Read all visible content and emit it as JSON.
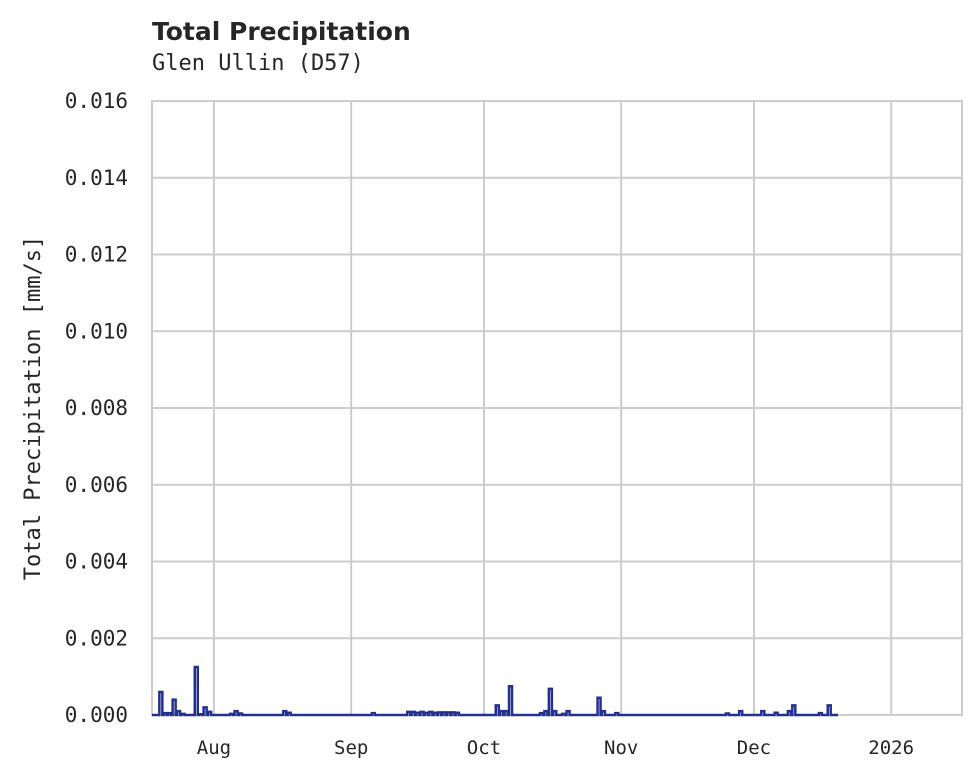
{
  "header": {
    "title": "Total Precipitation",
    "subtitle": "Glen Ullin (D57)"
  },
  "colors": {
    "series": "#233090",
    "grid": "#cccccc",
    "text": "#262626",
    "background": "#ffffff"
  },
  "chart_data": {
    "type": "line",
    "title": "Total Precipitation",
    "subtitle": "Glen Ullin (D57)",
    "xlabel": "",
    "ylabel": "Total Precipitation [mm/s]",
    "ylim": [
      0,
      0.016
    ],
    "xlim": [
      "2025-07-18",
      "2026-01-17"
    ],
    "grid": true,
    "legend": null,
    "y_ticks": [
      "0.000",
      "0.002",
      "0.004",
      "0.006",
      "0.008",
      "0.010",
      "0.012",
      "0.014",
      "0.016"
    ],
    "x_ticks": [
      "Aug",
      "Sep",
      "Oct",
      "Nov",
      "Dec",
      "2026"
    ],
    "series": [
      {
        "name": "Total Precipitation",
        "x": [
          "2025-07-20",
          "2025-07-21",
          "2025-07-22",
          "2025-07-23",
          "2025-07-24",
          "2025-07-25",
          "2025-07-28",
          "2025-07-29",
          "2025-07-30",
          "2025-07-31",
          "2025-08-05",
          "2025-08-06",
          "2025-08-07",
          "2025-08-17",
          "2025-08-18",
          "2025-09-06",
          "2025-09-14",
          "2025-09-15",
          "2025-09-16",
          "2025-09-17",
          "2025-09-18",
          "2025-09-19",
          "2025-09-20",
          "2025-09-21",
          "2025-09-22",
          "2025-09-23",
          "2025-09-24",
          "2025-09-25",
          "2025-10-04",
          "2025-10-05",
          "2025-10-06",
          "2025-10-07",
          "2025-10-14",
          "2025-10-15",
          "2025-10-16",
          "2025-10-17",
          "2025-10-19",
          "2025-10-20",
          "2025-10-27",
          "2025-10-28",
          "2025-10-31",
          "2025-11-25",
          "2025-11-28",
          "2025-12-03",
          "2025-12-06",
          "2025-12-09",
          "2025-12-10",
          "2025-12-16",
          "2025-12-18"
        ],
        "values": [
          0.0006,
          5e-05,
          5e-05,
          0.0004,
          0.0001,
          3e-05,
          0.00125,
          2e-05,
          0.0002,
          8e-05,
          3e-05,
          0.0001,
          4e-05,
          0.0001,
          6e-05,
          5e-05,
          8e-05,
          8e-05,
          6e-05,
          8e-05,
          6e-05,
          8e-05,
          6e-05,
          7e-05,
          7e-05,
          7e-05,
          7e-05,
          6e-05,
          0.00025,
          0.0001,
          0.0001,
          0.00075,
          5e-05,
          0.0001,
          0.00068,
          0.0001,
          3e-05,
          0.0001,
          0.00045,
          0.0001,
          5e-05,
          4e-05,
          0.0001,
          0.0001,
          6e-05,
          0.0001,
          0.00025,
          5e-05,
          0.00025
        ]
      }
    ]
  }
}
